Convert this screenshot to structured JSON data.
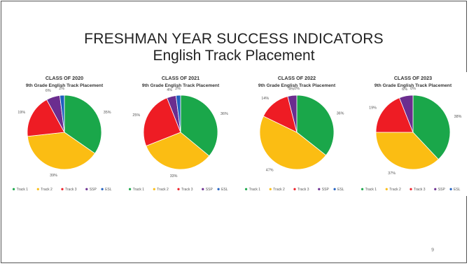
{
  "slide": {
    "title": "FRESHMAN YEAR SUCCESS INDICATORS",
    "subtitle": "English Track Placement",
    "page_number": "9"
  },
  "colors": {
    "Track 1": "#1aa74a",
    "Track 2": "#fbbd13",
    "Track 3": "#ee1c24",
    "SSP": "#6b2d8f",
    "ESL": "#1f5fbf"
  },
  "chart_data": [
    {
      "type": "pie",
      "title": "CLASS OF 2020",
      "subtitle": "9th Grade English Track Placement",
      "categories": [
        "Track 1",
        "Track 2",
        "Track 3",
        "SSP",
        "ESL"
      ],
      "values": [
        35,
        39,
        19,
        6,
        2
      ],
      "labels": [
        "35%",
        "39%",
        "19%",
        "6%",
        "2%"
      ],
      "legend": "bottom"
    },
    {
      "type": "pie",
      "title": "CLASS OF 2021",
      "subtitle": "9th Grade English Track Placement",
      "categories": [
        "Track 1",
        "Track 2",
        "Track 3",
        "SSP",
        "ESL"
      ],
      "values": [
        36,
        33,
        25,
        4,
        2
      ],
      "labels": [
        "36%",
        "33%",
        "25%",
        "4%",
        "2%"
      ],
      "legend": "bottom"
    },
    {
      "type": "pie",
      "title": "CLASS OF 2022",
      "subtitle": "9th Grade English Track Placement",
      "categories": [
        "Track 1",
        "Track 2",
        "Track 3",
        "SSP",
        "ESL"
      ],
      "values": [
        36,
        47,
        14,
        4,
        0
      ],
      "labels": [
        "36%",
        "47%",
        "14%",
        "4%",
        "0%"
      ],
      "legend": "bottom"
    },
    {
      "type": "pie",
      "title": "CLASS OF 2023",
      "subtitle": "9th Grade English Track Placement",
      "categories": [
        "Track 1",
        "Track 2",
        "Track 3",
        "SSP",
        "ESL"
      ],
      "values": [
        38,
        37,
        19,
        6,
        0
      ],
      "labels": [
        "38%",
        "37%",
        "19%",
        "6%",
        "0%"
      ],
      "legend": "bottom"
    }
  ]
}
